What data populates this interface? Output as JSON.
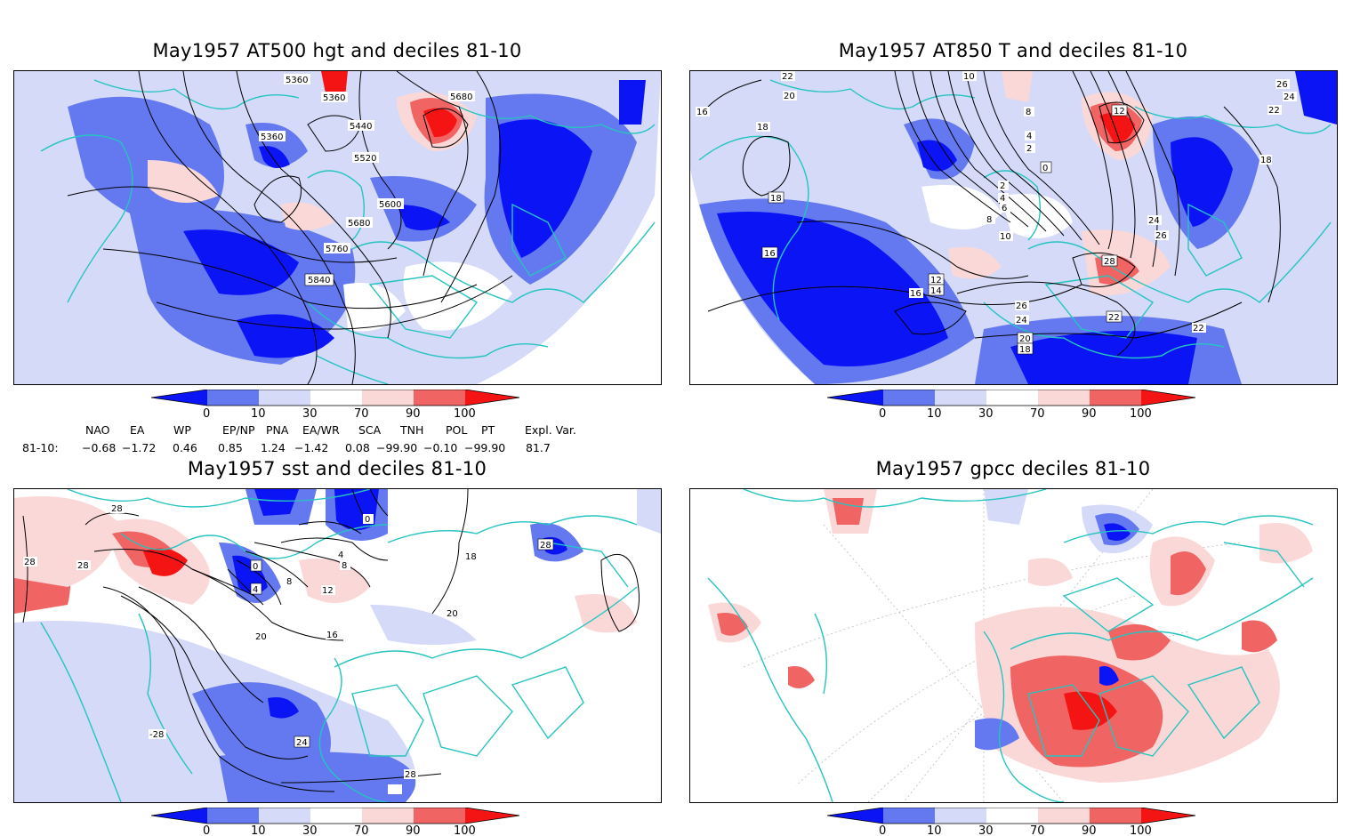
{
  "colors": {
    "dec_0_10": "#0a14f5",
    "dec_10_30": "#6478f0",
    "dec_30_near": "#d4daf7",
    "dec_70_90": "#fbd8d8",
    "dec_90_100": "#f06464",
    "dec_top": "#f51414",
    "coast": "#26c4c0",
    "contour": "#000000"
  },
  "panels": [
    {
      "title": "May1957 AT500 hgt and deciles 81-10",
      "labels": [
        "5360",
        "5360",
        "5680",
        "5440",
        "5360",
        "5520",
        "5600",
        "5680",
        "5760",
        "5840"
      ]
    },
    {
      "title": "May1957 AT850 T and deciles 81-10",
      "labels": [
        "22",
        "20",
        "18",
        "16",
        "18",
        "16",
        "10",
        "8",
        "4",
        "2",
        "0",
        "12",
        "26",
        "24",
        "22",
        "18",
        "2",
        "4",
        "6",
        "8",
        "10",
        "24",
        "26",
        "28",
        "22",
        "12",
        "14",
        "16",
        "26",
        "24",
        "20",
        "18",
        "22",
        "18"
      ]
    },
    {
      "title": "May1957 sst and deciles 81-10",
      "labels": [
        "28",
        "28",
        "28",
        "0",
        "4",
        "8",
        "12",
        "16",
        "20",
        "24",
        "28",
        "28",
        "0",
        "4",
        "8",
        "20",
        "18",
        "28",
        "-28"
      ]
    },
    {
      "title": "May1957 gpcc deciles 81-10",
      "labels": []
    }
  ],
  "colorbar": {
    "ticks": [
      "0",
      "10",
      "30",
      "70",
      "90",
      "100"
    ]
  },
  "indices": {
    "names": [
      "NAO",
      "EA",
      "WP",
      "EP/NP",
      "PNA",
      "EA/WR",
      "SCA",
      "TNH",
      "POL",
      "PT",
      "Expl. Var."
    ],
    "row_label": "81-10:",
    "values": [
      "−0.68",
      "−1.72",
      "0.46",
      "0.85",
      "1.24",
      "−1.42",
      "0.08",
      "−99.90",
      "−0.10",
      "−99.90",
      "81.7"
    ]
  }
}
